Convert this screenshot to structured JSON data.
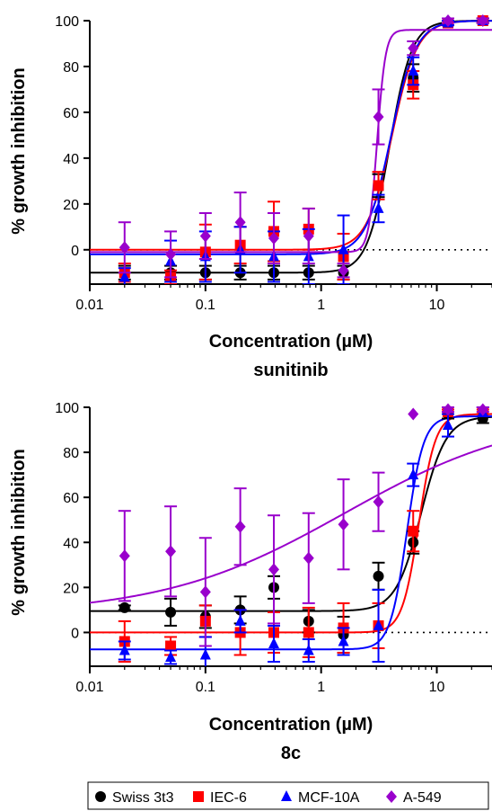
{
  "legend": [
    {
      "name": "Swiss 3t3",
      "color": "#000000",
      "marker": "circle"
    },
    {
      "name": "IEC-6",
      "color": "#ff0000",
      "marker": "square"
    },
    {
      "name": "MCF-10A",
      "color": "#0000ff",
      "marker": "triangle"
    },
    {
      "name": "A-549",
      "color": "#9900cc",
      "marker": "diamond"
    }
  ],
  "chart_data": [
    {
      "type": "scatter",
      "title": "sunitinib",
      "xlabel": "Concentration (µM)",
      "ylabel": "% growth inhibition",
      "x_scale": "log",
      "xlim": [
        0.01,
        30
      ],
      "ylim": [
        -15,
        100
      ],
      "x_ticks": [
        0.01,
        0.1,
        1,
        10
      ],
      "x_tick_labels": [
        "0.01",
        "0.1",
        "1",
        "10"
      ],
      "y_ticks": [
        0,
        20,
        40,
        60,
        80,
        100
      ],
      "y_tick_labels": [
        "0",
        "20",
        "40",
        "60",
        "80",
        "100"
      ],
      "zero_line": true,
      "grid": false,
      "x": [
        0.02,
        0.05,
        0.1,
        0.2,
        0.39,
        0.78,
        1.56,
        3.13,
        6.25,
        12.5,
        25
      ],
      "series": [
        {
          "name": "Swiss 3t3",
          "color": "#000000",
          "marker": "circle",
          "values": [
            -10,
            -10,
            -10,
            -10,
            -10,
            -10,
            -10,
            28,
            75,
            99,
            100
          ],
          "errors": [
            3,
            3,
            3,
            3,
            3,
            3,
            3,
            5,
            6,
            1,
            1
          ],
          "fit": {
            "bottom": -10,
            "top": 100,
            "ec50": 3.9,
            "hill": 4.5
          }
        },
        {
          "name": "IEC-6",
          "color": "#ff0000",
          "marker": "square",
          "values": [
            -10,
            -12,
            -1,
            2,
            8,
            9,
            -3,
            28,
            72,
            99,
            100
          ],
          "errors": [
            4,
            3,
            12,
            8,
            13,
            9,
            10,
            6,
            6,
            1,
            1
          ],
          "fit": {
            "bottom": 0,
            "top": 100,
            "ec50": 4.1,
            "hill": 4
          }
        },
        {
          "name": "MCF-10A",
          "color": "#0000ff",
          "marker": "triangle",
          "values": [
            -12,
            -5,
            -3,
            0,
            -3,
            -3,
            0,
            18,
            78,
            99,
            100
          ],
          "errors": [
            4,
            9,
            11,
            10,
            11,
            12,
            15,
            6,
            6,
            1,
            1
          ],
          "fit": {
            "bottom": -2,
            "top": 100,
            "ec50": 4,
            "hill": 4
          }
        },
        {
          "name": "A-549",
          "color": "#9900cc",
          "marker": "diamond",
          "values": [
            1,
            -2,
            6,
            12,
            5,
            6,
            -9,
            58,
            88,
            100,
            100
          ],
          "errors": [
            11,
            10,
            10,
            13,
            11,
            12,
            3,
            12,
            3,
            1,
            1
          ],
          "fit": {
            "bottom": -1,
            "top": 96,
            "ec50": 3.05,
            "hill": 12
          }
        }
      ]
    },
    {
      "type": "scatter",
      "title": "8c",
      "xlabel": "Concentration (µM)",
      "ylabel": "% growth inhibition",
      "x_scale": "log",
      "xlim": [
        0.01,
        30
      ],
      "ylim": [
        -15,
        100
      ],
      "x_ticks": [
        0.01,
        0.1,
        1,
        10
      ],
      "x_tick_labels": [
        "0.01",
        "0.1",
        "1",
        "10"
      ],
      "y_ticks": [
        0,
        20,
        40,
        60,
        80,
        100
      ],
      "y_tick_labels": [
        "0",
        "20",
        "40",
        "60",
        "80",
        "100"
      ],
      "zero_line": true,
      "grid": false,
      "x": [
        0.02,
        0.05,
        0.1,
        0.2,
        0.39,
        0.78,
        1.56,
        3.13,
        6.25,
        12.5,
        25
      ],
      "series": [
        {
          "name": "Swiss 3t3",
          "color": "#000000",
          "marker": "circle",
          "values": [
            11,
            9,
            7,
            10,
            20,
            5,
            -1,
            25,
            40,
            97,
            95
          ],
          "errors": [
            1,
            6,
            5,
            6,
            5,
            5,
            8,
            6,
            5,
            2,
            2
          ],
          "fit": {
            "bottom": 9.5,
            "top": 96,
            "ec50": 7.3,
            "hill": 4
          }
        },
        {
          "name": "IEC-6",
          "color": "#ff0000",
          "marker": "square",
          "values": [
            -4,
            -6,
            5,
            0,
            0,
            0,
            2,
            3,
            45,
            98,
            98
          ],
          "errors": [
            9,
            4,
            7,
            10,
            9,
            11,
            11,
            10,
            9,
            1,
            1
          ],
          "fit": {
            "bottom": 0,
            "top": 97,
            "ec50": 7,
            "hill": 6
          }
        },
        {
          "name": "MCF-10A",
          "color": "#0000ff",
          "marker": "triangle",
          "values": [
            -8,
            -11,
            -10,
            5,
            -5,
            -8,
            -4,
            3,
            70,
            92,
            98
          ],
          "errors": [
            4,
            3,
            8,
            5,
            8,
            5,
            6,
            16,
            5,
            5,
            2
          ],
          "fit": {
            "bottom": -7.5,
            "top": 96,
            "ec50": 5.5,
            "hill": 6
          }
        },
        {
          "name": "A-549",
          "color": "#9900cc",
          "marker": "diamond",
          "values": [
            34,
            36,
            18,
            47,
            28,
            33,
            48,
            58,
            97,
            99,
            99
          ],
          "errors": [
            20,
            20,
            24,
            17,
            24,
            20,
            20,
            13,
            0,
            1,
            1
          ],
          "fit": {
            "bottom": 8,
            "top": 98,
            "ec50": 1.6,
            "hill": 0.55
          }
        }
      ]
    }
  ]
}
